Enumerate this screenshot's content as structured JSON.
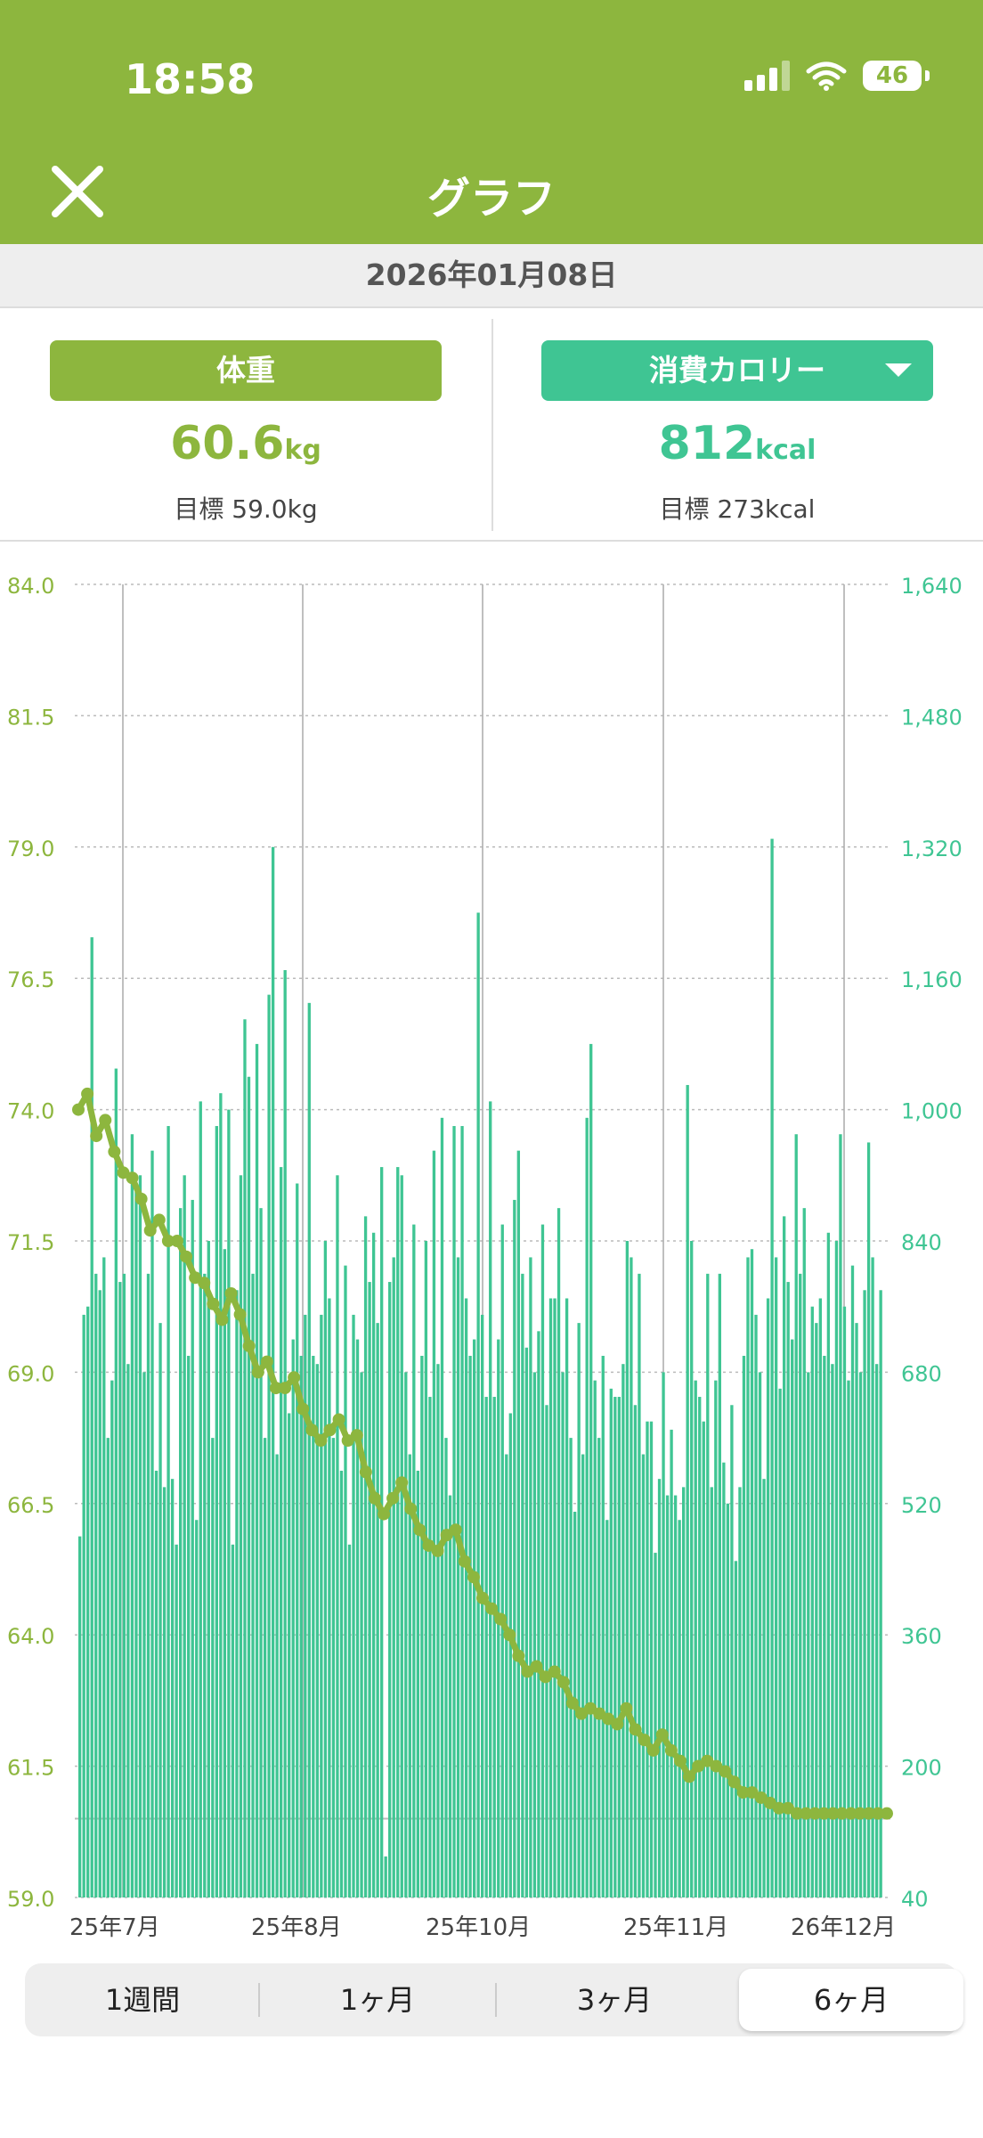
{
  "status": {
    "time": "18:58",
    "battery": "46"
  },
  "header": {
    "title": "グラフ"
  },
  "date": "2026年01月08日",
  "summary": {
    "weight": {
      "label": "体重",
      "value": "60.6",
      "unit": "kg",
      "goal": "目標 59.0kg"
    },
    "calories": {
      "label": "消費カロリー",
      "value": "812",
      "unit": "kcal",
      "goal": "目標 273kcal"
    }
  },
  "tabs": [
    "1週間",
    "1ヶ月",
    "3ヶ月",
    "6ヶ月"
  ],
  "active_tab": 3,
  "colors": {
    "weight": "#8db63e",
    "calories": "#3fc593",
    "header": "#8db63e"
  },
  "chart_data": {
    "type": "bar+line",
    "x_tick_labels": [
      "25年7月",
      "25年8月",
      "25年10月",
      "25年11月",
      "26年12月"
    ],
    "left_axis": {
      "range": [
        59.0,
        84.0
      ],
      "ticks": [
        "84.0",
        "81.5",
        "79.0",
        "76.5",
        "74.0",
        "71.5",
        "69.0",
        "66.5",
        "64.0",
        "61.5",
        "59.0"
      ]
    },
    "right_axis": {
      "range": [
        40,
        1640
      ],
      "ticks": [
        "1,640",
        "1,480",
        "1,320",
        "1,160",
        "1,000",
        "840",
        "680",
        "520",
        "360",
        "200",
        "40"
      ]
    },
    "goal_weight": 59.0,
    "goal_calories": 273,
    "weight_series": {
      "name": "体重",
      "x_days": [
        0,
        2,
        4,
        6,
        8,
        10,
        12,
        14,
        16,
        18,
        20,
        22,
        24,
        26,
        28,
        30,
        32,
        34,
        36,
        38,
        40,
        42,
        44,
        46,
        48,
        50,
        52,
        54,
        56,
        58,
        60,
        62,
        64,
        66,
        68,
        70,
        72,
        74,
        76,
        78,
        80,
        82,
        84,
        86,
        88,
        90,
        92,
        94,
        96,
        98,
        100,
        102,
        104,
        106,
        108,
        110,
        112,
        114,
        116,
        118,
        120,
        122,
        124,
        126,
        128,
        130,
        132,
        134,
        136,
        138,
        140,
        142,
        144,
        146,
        148,
        150,
        152,
        154,
        156,
        158,
        160,
        162,
        164,
        166,
        168,
        170,
        172,
        174,
        176,
        178,
        180
      ],
      "values": [
        74.0,
        74.3,
        73.5,
        73.8,
        73.2,
        72.8,
        72.7,
        72.3,
        71.7,
        71.9,
        71.5,
        71.5,
        71.2,
        70.8,
        70.7,
        70.3,
        70.0,
        70.5,
        70.1,
        69.5,
        69.0,
        69.2,
        68.7,
        68.7,
        68.9,
        68.3,
        67.9,
        67.7,
        67.9,
        68.1,
        67.7,
        67.8,
        67.1,
        66.6,
        66.3,
        66.6,
        66.9,
        66.4,
        66.0,
        65.7,
        65.6,
        65.9,
        66.0,
        65.4,
        65.1,
        64.7,
        64.5,
        64.3,
        64.0,
        63.6,
        63.3,
        63.4,
        63.2,
        63.3,
        63.1,
        62.7,
        62.5,
        62.6,
        62.5,
        62.4,
        62.3,
        62.6,
        62.2,
        62.0,
        61.8,
        62.1,
        61.8,
        61.6,
        61.3,
        61.5,
        61.6,
        61.5,
        61.4,
        61.2,
        61.0,
        61.0,
        60.9,
        60.8,
        60.7,
        60.7,
        60.6,
        60.6,
        60.6,
        60.6,
        60.6,
        60.6,
        60.6,
        60.6,
        60.6,
        60.6,
        60.6
      ]
    },
    "calorie_series": {
      "name": "消費カロリー",
      "values": [
        480,
        750,
        760,
        1210,
        800,
        780,
        820,
        600,
        670,
        1050,
        790,
        800,
        690,
        970,
        900,
        920,
        680,
        800,
        950,
        560,
        740,
        540,
        980,
        550,
        470,
        880,
        920,
        700,
        890,
        500,
        1010,
        800,
        840,
        600,
        980,
        1020,
        830,
        1000,
        470,
        780,
        920,
        1110,
        1040,
        800,
        1080,
        880,
        600,
        1140,
        1320,
        580,
        930,
        1170,
        630,
        720,
        910,
        700,
        750,
        1130,
        700,
        690,
        750,
        840,
        770,
        600,
        920,
        560,
        810,
        470,
        750,
        720,
        680,
        870,
        790,
        850,
        740,
        930,
        90,
        790,
        820,
        930,
        920,
        680,
        580,
        860,
        560,
        700,
        840,
        650,
        950,
        690,
        990,
        600,
        530,
        980,
        820,
        980,
        770,
        700,
        720,
        1240,
        750,
        650,
        1010,
        650,
        720,
        860,
        580,
        630,
        890,
        950,
        800,
        710,
        820,
        680,
        730,
        860,
        640,
        770,
        770,
        880,
        680,
        770,
        600,
        510,
        740,
        580,
        990,
        1080,
        670,
        600,
        700,
        500,
        660,
        650,
        650,
        690,
        840,
        820,
        640,
        800,
        580,
        620,
        620,
        460,
        550,
        680,
        530,
        610,
        530,
        500,
        540,
        1030,
        840,
        670,
        650,
        620,
        800,
        540,
        670,
        800,
        570,
        520,
        640,
        450,
        540,
        700,
        820,
        830,
        750,
        680,
        550,
        770,
        1330,
        820,
        660,
        870,
        790,
        720,
        970,
        800,
        880,
        680,
        760,
        740,
        770,
        700,
        850,
        690,
        840,
        970,
        760,
        670,
        810,
        740,
        680,
        780,
        960,
        820,
        690,
        780
      ]
    }
  }
}
